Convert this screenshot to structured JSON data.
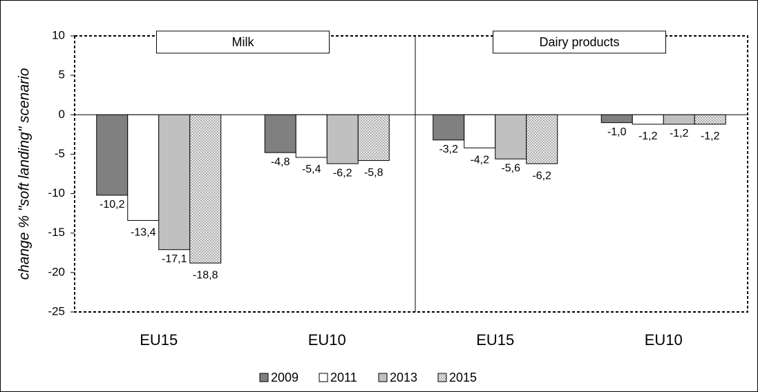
{
  "chart_data": {
    "type": "bar",
    "y_label": "change % \"soft landing\" scenario",
    "panels": [
      "Milk",
      "Dairy products"
    ],
    "categories": [
      "EU15",
      "EU10",
      "EU15",
      "EU10"
    ],
    "series": [
      {
        "name": "2009",
        "color": "#808080",
        "values": [
          -10.2,
          -4.8,
          -3.2,
          -1.0
        ],
        "value_labels": [
          "-10,2",
          "-4,8",
          "-3,2",
          "-1,0"
        ]
      },
      {
        "name": "2011",
        "color": "#ffffff",
        "values": [
          -13.4,
          -5.4,
          -4.2,
          -1.2
        ],
        "value_labels": [
          "-13,4",
          "-5,4",
          "-4,2",
          "-1,2"
        ]
      },
      {
        "name": "2013",
        "color": "#c0c0c0",
        "values": [
          -17.1,
          -6.2,
          -5.6,
          -1.2
        ],
        "value_labels": [
          "-17,1",
          "-6,2",
          "-5,6",
          "-1,2"
        ]
      },
      {
        "name": "2015",
        "color": "#e8e8e8",
        "pattern": "dots",
        "values": [
          -18.8,
          -5.8,
          -6.2,
          -1.2
        ],
        "value_labels": [
          "-18,8",
          "-5,8",
          "-6,2",
          "-1,2"
        ]
      }
    ],
    "ylim": [
      -25,
      10
    ],
    "yticks": [
      10,
      5,
      0,
      -5,
      -10,
      -15,
      -20,
      -25
    ]
  }
}
